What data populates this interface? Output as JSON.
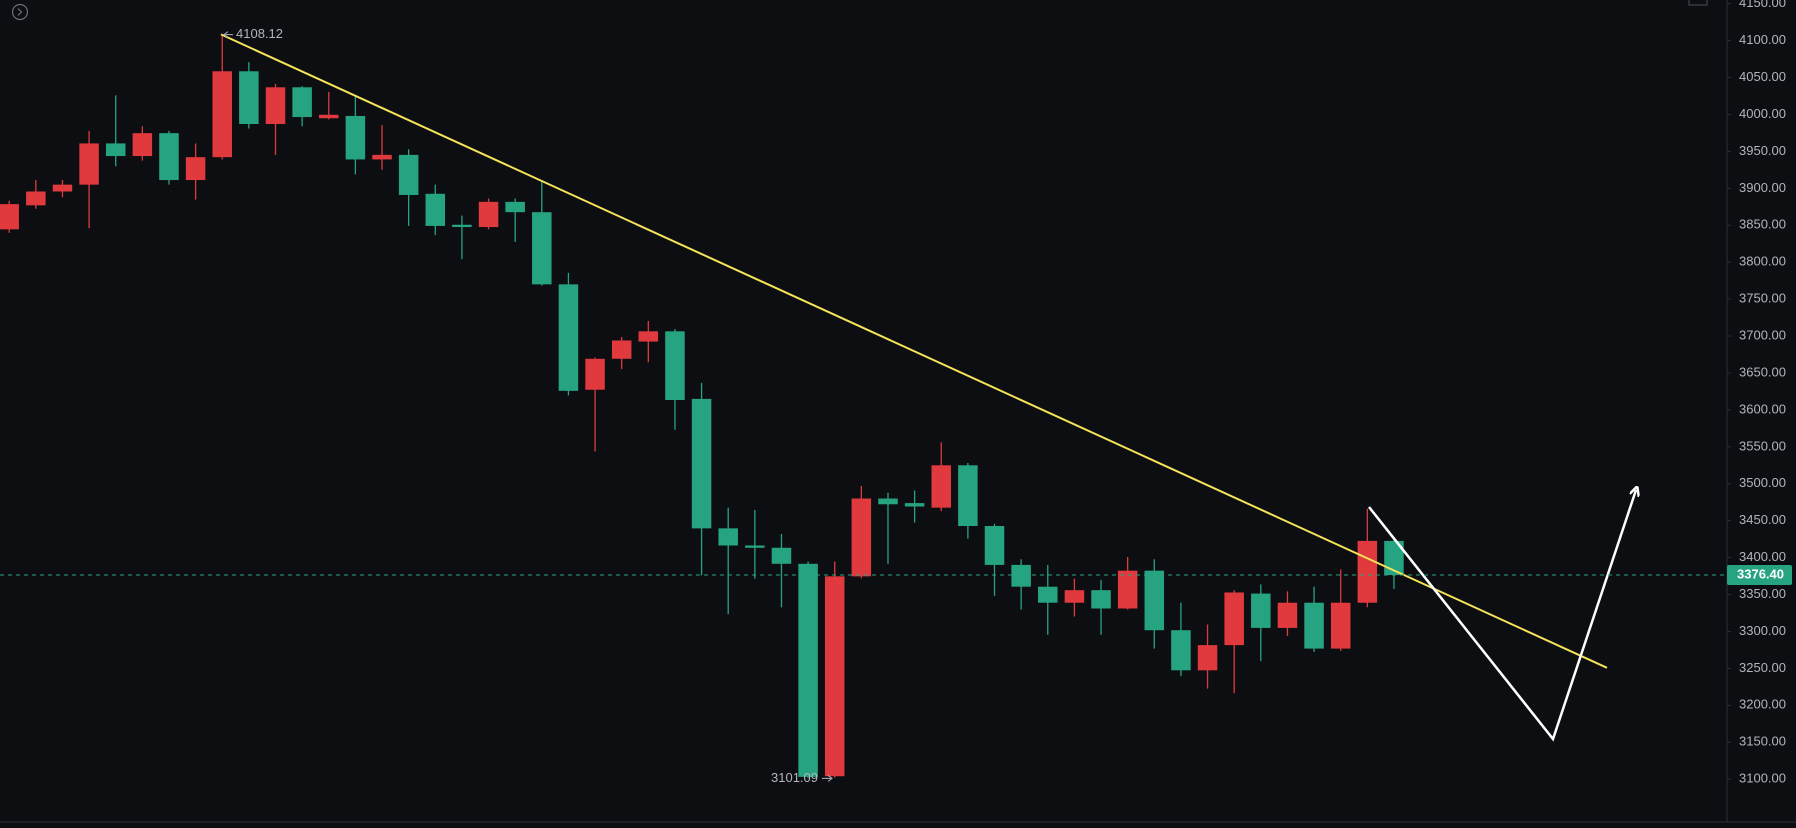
{
  "chart_data": {
    "type": "candlestick",
    "up_color": "#e0393e",
    "down_color": "#26a482",
    "open": [
      3844.5,
      3877.0,
      3895.7,
      3905.0,
      3960.8,
      3943.7,
      3974.7,
      3911.2,
      3942.2,
      4058.5,
      3987.1,
      4036.8,
      3994.9,
      3998.0,
      3939.1,
      3945.3,
      3892.6,
      3850.7,
      3847.6,
      3881.7,
      3867.7,
      3770.0,
      3627.3,
      3669.2,
      3692.5,
      3706.4,
      3614.9,
      3439.6,
      3416.4,
      3413.3,
      3391.6,
      3104.0,
      3374.6,
      3480.0,
      3473.8,
      3467.6,
      3525.0,
      3442.8,
      3390.1,
      3360.6,
      3338.9,
      3355.9,
      3331.1,
      3382.3,
      3301.7,
      3247.4,
      3281.5,
      3351.3,
      3304.8,
      3338.9,
      3276.8,
      3338.9,
      3422.6
    ],
    "high": [
      3883.2,
      3911.2,
      3911.2,
      3977.8,
      4025.9,
      3984.0,
      3977.8,
      3960.8,
      4108.12,
      4070.9,
      4041.4,
      4038.3,
      4030.6,
      4025.9,
      3985.6,
      3953.0,
      3905.0,
      3863.1,
      3886.3,
      3886.3,
      3911.2,
      3785.5,
      3670.8,
      3698.7,
      3720.4,
      3709.5,
      3636.6,
      3467.6,
      3464.5,
      3431.9,
      3394.7,
      3394.7,
      3497.1,
      3487.8,
      3490.9,
      3556.0,
      3528.1,
      3445.9,
      3397.8,
      3390.1,
      3371.5,
      3369.9,
      3400.9,
      3397.8,
      3338.9,
      3309.4,
      3355.9,
      3363.7,
      3354.4,
      3360.6,
      3383.9,
      3466.1,
      3425.7
    ],
    "low": [
      3839.8,
      3872.4,
      3887.9,
      3846.0,
      3929.8,
      3937.5,
      3905.0,
      3884.8,
      3939.1,
      3980.9,
      3945.3,
      3984.0,
      3993.4,
      3918.9,
      3925.1,
      3849.1,
      3836.7,
      3804.1,
      3844.5,
      3827.4,
      3768.5,
      3619.6,
      3543.6,
      3655.3,
      3664.6,
      3573.1,
      3376.1,
      3323.4,
      3371.5,
      3332.7,
      3101.09,
      3102.0,
      3372.0,
      3391.6,
      3447.4,
      3463.0,
      3425.7,
      3348.2,
      3329.6,
      3295.5,
      3320.3,
      3295.5,
      3329.6,
      3276.8,
      3239.6,
      3222.6,
      3216.3,
      3259.8,
      3293.9,
      3272.2,
      3273.7,
      3332.7,
      3357.5
    ],
    "close": [
      3878.6,
      3895.7,
      3905.0,
      3960.8,
      3943.7,
      3974.7,
      3911.2,
      3942.2,
      4058.5,
      3987.1,
      4036.8,
      3996.5,
      3999.6,
      3939.1,
      3945.3,
      3891.0,
      3849.1,
      3847.6,
      3881.7,
      3867.7,
      3770.0,
      3625.8,
      3669.2,
      3694.0,
      3706.4,
      3613.4,
      3439.6,
      3416.4,
      3413.3,
      3391.6,
      3103.1,
      3374.6,
      3480.0,
      3472.2,
      3469.2,
      3525.0,
      3442.8,
      3390.1,
      3360.6,
      3338.9,
      3355.9,
      3331.1,
      3382.3,
      3301.7,
      3247.4,
      3281.5,
      3352.8,
      3304.8,
      3338.9,
      3276.8,
      3338.9,
      3422.6,
      3376.4
    ],
    "high_marker": 4108.12,
    "low_marker": 3101.09,
    "last_price": {
      "value": 3376.4,
      "label": "3376.40"
    },
    "ylim": [
      3042,
      4155
    ],
    "yticks": [
      {
        "value": 3100,
        "label": "3100.00"
      },
      {
        "value": 3150,
        "label": "3150.00"
      },
      {
        "value": 3200,
        "label": "3200.00"
      },
      {
        "value": 3250,
        "label": "3250.00"
      },
      {
        "value": 3300,
        "label": "3300.00"
      },
      {
        "value": 3350,
        "label": "3350.00"
      },
      {
        "value": 3400,
        "label": "3400.00"
      },
      {
        "value": 3450,
        "label": "3450.00"
      },
      {
        "value": 3500,
        "label": "3500.00"
      },
      {
        "value": 3550,
        "label": "3550.00"
      },
      {
        "value": 3600,
        "label": "3600.00"
      },
      {
        "value": 3650,
        "label": "3650.00"
      },
      {
        "value": 3700,
        "label": "3700.00"
      },
      {
        "value": 3750,
        "label": "3750.00"
      },
      {
        "value": 3800,
        "label": "3800.00"
      },
      {
        "value": 3850,
        "label": "3850.00"
      },
      {
        "value": 3900,
        "label": "3900.00"
      },
      {
        "value": 3950,
        "label": "3950.00"
      },
      {
        "value": 4000,
        "label": "4000.00"
      },
      {
        "value": 4050,
        "label": "4050.00"
      },
      {
        "value": 4100,
        "label": "4100.00"
      },
      {
        "value": 4150,
        "label": "4150.00"
      }
    ]
  }
}
